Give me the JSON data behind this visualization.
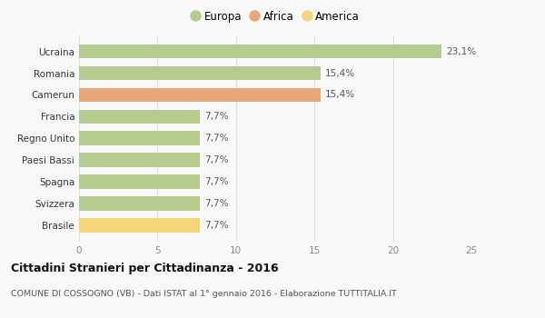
{
  "categories": [
    "Brasile",
    "Svizzera",
    "Spagna",
    "Paesi Bassi",
    "Regno Unito",
    "Francia",
    "Camerun",
    "Romania",
    "Ucraina"
  ],
  "values": [
    7.7,
    7.7,
    7.7,
    7.7,
    7.7,
    7.7,
    15.4,
    15.4,
    23.1
  ],
  "labels": [
    "7,7%",
    "7,7%",
    "7,7%",
    "7,7%",
    "7,7%",
    "7,7%",
    "15,4%",
    "15,4%",
    "23,1%"
  ],
  "colors": [
    "#f5d57a",
    "#b5cc8e",
    "#b5cc8e",
    "#b5cc8e",
    "#b5cc8e",
    "#b5cc8e",
    "#e8a87c",
    "#b5cc8e",
    "#b5cc8e"
  ],
  "legend_labels": [
    "Europa",
    "Africa",
    "America"
  ],
  "legend_colors": [
    "#b5cc8e",
    "#e8a87c",
    "#f5d57a"
  ],
  "xlim": [
    0,
    25
  ],
  "xticks": [
    0,
    5,
    10,
    15,
    20,
    25
  ],
  "title": "Cittadini Stranieri per Cittadinanza - 2016",
  "subtitle": "COMUNE DI COSSOGNO (VB) - Dati ISTAT al 1° gennaio 2016 - Elaborazione TUTTITALIA.IT",
  "bg_color": "#f9f9f9",
  "grid_color": "#e0e0e0",
  "bar_height": 0.65,
  "label_fontsize": 7.5,
  "tick_fontsize": 7.5
}
